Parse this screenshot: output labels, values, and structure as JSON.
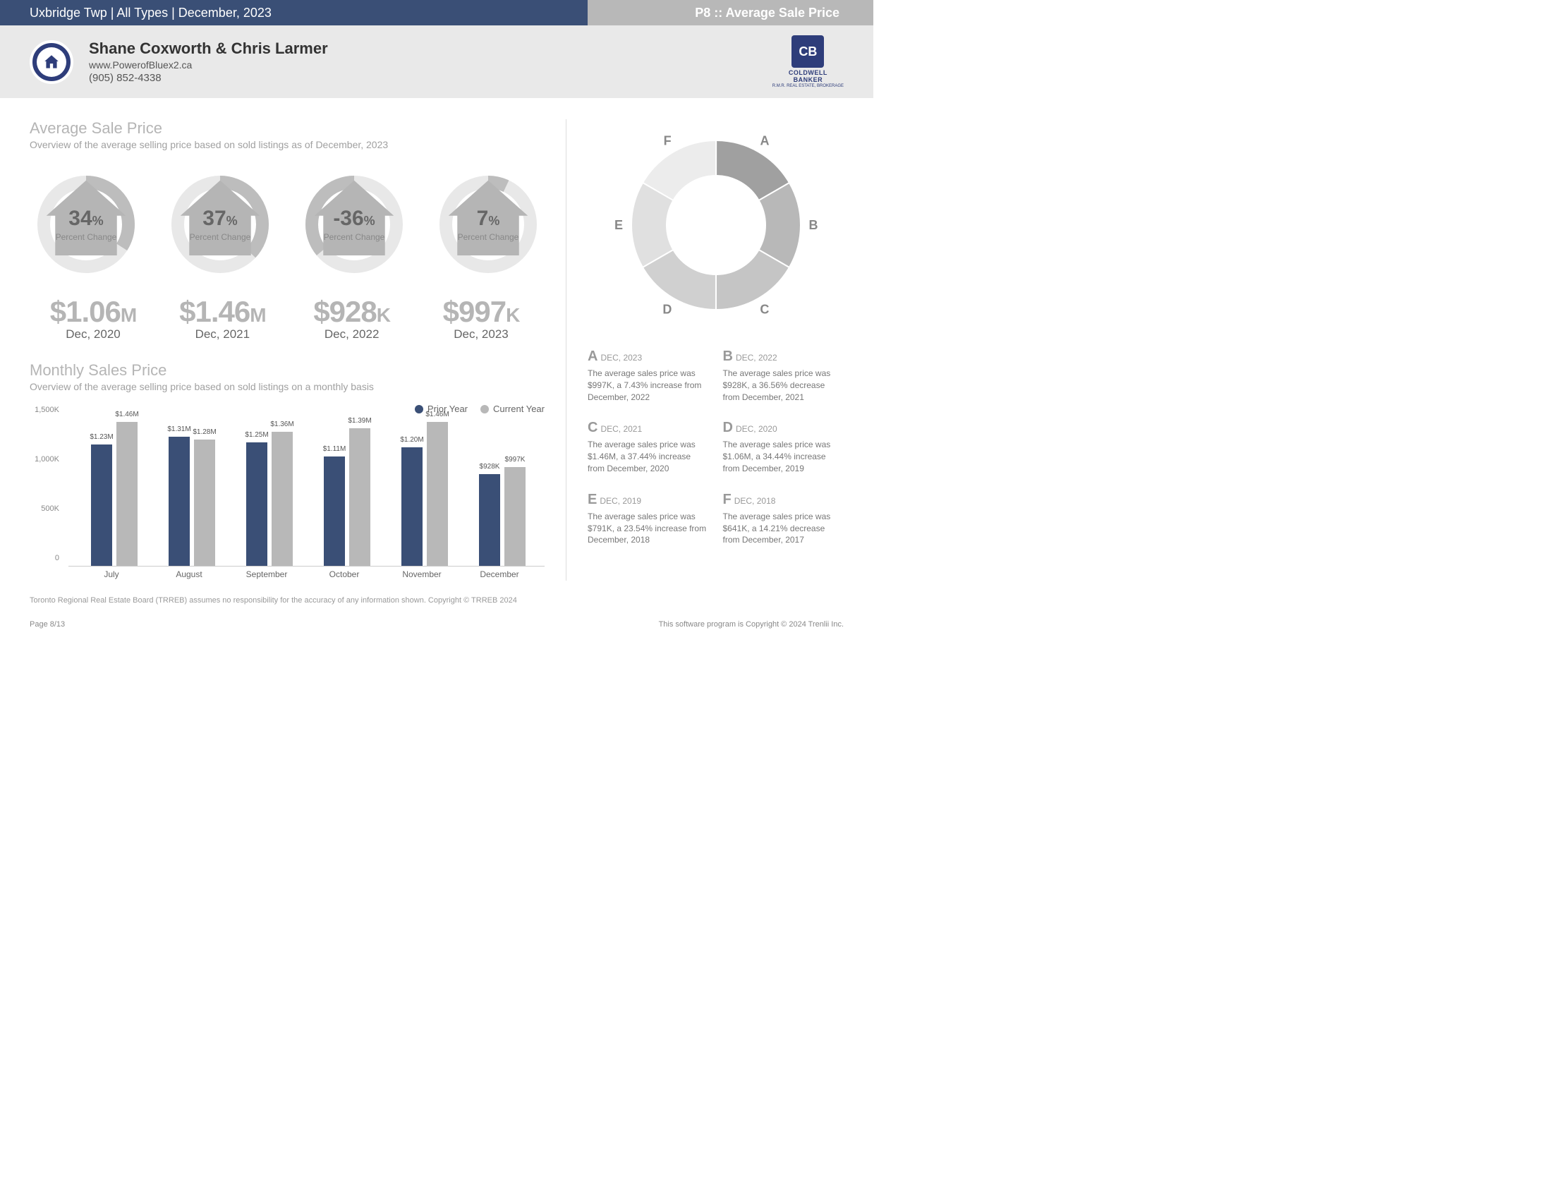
{
  "top": {
    "left": "Uxbridge Twp | All Types | December, 2023",
    "right": "P8 :: Average Sale Price"
  },
  "header": {
    "name": "Shane Coxworth & Chris Larmer",
    "website": "www.PowerofBluex2.ca",
    "phone": "(905) 852-4338",
    "brand1": "COLDWELL",
    "brand2": "BANKER",
    "brand3": "R.M.R. REAL ESTATE, BROKERAGE"
  },
  "colors": {
    "navy": "#3a4f76",
    "grey": "#b8b8b8",
    "lightgrey": "#e0e0e0",
    "ring_bg": "#e8e8e8",
    "ring_fg": "#bdbdbd",
    "bar_prior": "#3a4f76",
    "bar_current": "#b8b8b8"
  },
  "avg": {
    "title": "Average Sale Price",
    "subtitle": "Overview of the average selling price based on sold listings as of December, 2023",
    "gauge_label": "Percent Change",
    "gauges": [
      {
        "value": "34",
        "pct": 34,
        "neg": false
      },
      {
        "value": "37",
        "pct": 37,
        "neg": false
      },
      {
        "value": "-36",
        "pct": 36,
        "neg": true
      },
      {
        "value": "7",
        "pct": 7,
        "neg": false
      }
    ],
    "prices": [
      {
        "val": "$1.06",
        "unit": "M",
        "date": "Dec, 2020"
      },
      {
        "val": "$1.46",
        "unit": "M",
        "date": "Dec, 2021"
      },
      {
        "val": "$928",
        "unit": "K",
        "date": "Dec, 2022"
      },
      {
        "val": "$997",
        "unit": "K",
        "date": "Dec, 2023"
      }
    ]
  },
  "monthly": {
    "title": "Monthly Sales Price",
    "subtitle": "Overview of the average selling price based on sold listings on a monthly basis",
    "legend_prior": "Prior Year",
    "legend_current": "Current Year",
    "ymax": 1500,
    "yticks": [
      0,
      500,
      1000,
      1500
    ],
    "ytick_labels": [
      "0",
      "500K",
      "1,000K",
      "1,500K"
    ],
    "months": [
      "July",
      "August",
      "September",
      "October",
      "November",
      "December"
    ],
    "data": [
      {
        "prior": 1230,
        "prior_label": "$1.23M",
        "current": 1460,
        "current_label": "$1.46M"
      },
      {
        "prior": 1310,
        "prior_label": "$1.31M",
        "current": 1280,
        "current_label": "$1.28M"
      },
      {
        "prior": 1250,
        "prior_label": "$1.25M",
        "current": 1360,
        "current_label": "$1.36M"
      },
      {
        "prior": 1110,
        "prior_label": "$1.11M",
        "current": 1390,
        "current_label": "$1.39M"
      },
      {
        "prior": 1200,
        "prior_label": "$1.20M",
        "current": 1460,
        "current_label": "$1.46M"
      },
      {
        "prior": 928,
        "prior_label": "$928K",
        "current": 997,
        "current_label": "$997K"
      }
    ]
  },
  "donut": {
    "slices": [
      {
        "letter": "A",
        "share": 16.67,
        "color": "#a0a0a0"
      },
      {
        "letter": "B",
        "share": 16.67,
        "color": "#b8b8b8"
      },
      {
        "letter": "C",
        "share": 16.67,
        "color": "#c5c5c5"
      },
      {
        "letter": "D",
        "share": 16.67,
        "color": "#d0d0d0"
      },
      {
        "letter": "E",
        "share": 16.67,
        "color": "#e0e0e0"
      },
      {
        "letter": "F",
        "share": 16.67,
        "color": "#ececec"
      }
    ],
    "notes": [
      {
        "letter": "A",
        "date": "DEC, 2023",
        "body": "The average sales price was $997K, a 7.43% increase from December, 2022"
      },
      {
        "letter": "B",
        "date": "DEC, 2022",
        "body": "The average sales price was $928K, a 36.56% decrease from December, 2021"
      },
      {
        "letter": "C",
        "date": "DEC, 2021",
        "body": "The average sales price was $1.46M, a 37.44% increase from December, 2020"
      },
      {
        "letter": "D",
        "date": "DEC, 2020",
        "body": "The average sales price was $1.06M, a 34.44% increase from December, 2019"
      },
      {
        "letter": "E",
        "date": "DEC, 2019",
        "body": "The average sales price was $791K, a 23.54% increase from December, 2018"
      },
      {
        "letter": "F",
        "date": "DEC, 2018",
        "body": "The average sales price was $641K, a 14.21% decrease from December, 2017"
      }
    ]
  },
  "footer": {
    "disclaimer": "Toronto Regional Real Estate Board (TRREB) assumes no responsibility for the accuracy of any information shown. Copyright © TRREB 2024",
    "page": "Page 8/13",
    "copyright": "This software program is Copyright © 2024 Trenlii Inc."
  }
}
